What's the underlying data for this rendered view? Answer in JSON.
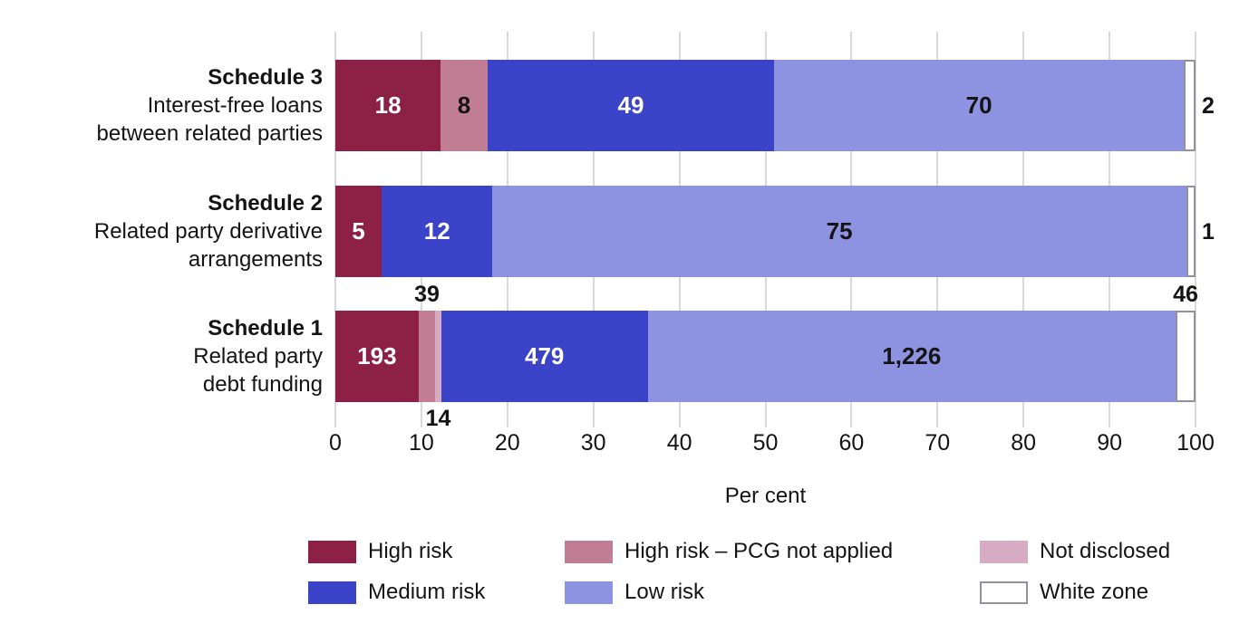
{
  "chart_data": {
    "type": "bar",
    "orientation": "horizontal",
    "stacked": true,
    "normalized": "each bar scaled to 100 per cent of its row total",
    "title": "",
    "xlabel": "Per cent",
    "ylabel": "",
    "xlim": [
      0,
      100
    ],
    "x_ticks": [
      0,
      10,
      20,
      30,
      40,
      50,
      60,
      70,
      80,
      90,
      100
    ],
    "grid": "vertical gridlines on",
    "legend_position": "bottom",
    "series": {
      "high": {
        "label": "High risk",
        "color": "#8d2145",
        "text_color": "#ffffff"
      },
      "pcg": {
        "label": "High risk – PCG not applied",
        "color": "#c17d93",
        "text_color": "#141414"
      },
      "notdisclosed": {
        "label": "Not disclosed",
        "color": "#d7abc1",
        "text_color": "#141414"
      },
      "medium": {
        "label": "Medium risk",
        "color": "#3b44c9",
        "text_color": "#ffffff"
      },
      "low": {
        "label": "Low risk",
        "color": "#8d93e1",
        "text_color": "#141414"
      },
      "white": {
        "label": "White zone",
        "color": "#ffffff",
        "text_color": "#141414",
        "border_color": "#94919f"
      }
    },
    "legend_columns": [
      [
        "high",
        "medium"
      ],
      [
        "pcg",
        "low"
      ],
      [
        "notdisclosed",
        "white"
      ]
    ],
    "rows": [
      {
        "title": "Schedule 3",
        "subtitle_lines": [
          "Interest-free loans",
          "between related parties"
        ],
        "segments": [
          {
            "series": "high",
            "value": 18,
            "display": "18",
            "label_pos": "inside"
          },
          {
            "series": "pcg",
            "value": 8,
            "display": "8",
            "label_pos": "inside"
          },
          {
            "series": "medium",
            "value": 49,
            "display": "49",
            "label_pos": "inside"
          },
          {
            "series": "low",
            "value": 70,
            "display": "70",
            "label_pos": "inside"
          },
          {
            "series": "white",
            "value": 2,
            "display": "2",
            "label_pos": "right"
          }
        ]
      },
      {
        "title": "Schedule 2",
        "subtitle_lines": [
          "Related party derivative",
          "arrangements"
        ],
        "segments": [
          {
            "series": "high",
            "value": 5,
            "display": "5",
            "label_pos": "inside"
          },
          {
            "series": "medium",
            "value": 12,
            "display": "12",
            "label_pos": "inside"
          },
          {
            "series": "low",
            "value": 75,
            "display": "75",
            "label_pos": "inside"
          },
          {
            "series": "white",
            "value": 1,
            "display": "1",
            "label_pos": "right"
          }
        ]
      },
      {
        "title": "Schedule 1",
        "subtitle_lines": [
          "Related party",
          "debt funding"
        ],
        "segments": [
          {
            "series": "high",
            "value": 193,
            "display": "193",
            "label_pos": "inside"
          },
          {
            "series": "pcg",
            "value": 39,
            "display": "39",
            "label_pos": "above"
          },
          {
            "series": "notdisclosed",
            "value": 14,
            "display": "14",
            "label_pos": "below"
          },
          {
            "series": "medium",
            "value": 479,
            "display": "479",
            "label_pos": "inside"
          },
          {
            "series": "low",
            "value": 1226,
            "display": "1,226",
            "label_pos": "inside"
          },
          {
            "series": "white",
            "value": 46,
            "display": "46",
            "label_pos": "above"
          }
        ]
      }
    ]
  },
  "colors": {
    "background": "#ffffff",
    "gridline": "#d9d9d9",
    "text": "#141414"
  }
}
